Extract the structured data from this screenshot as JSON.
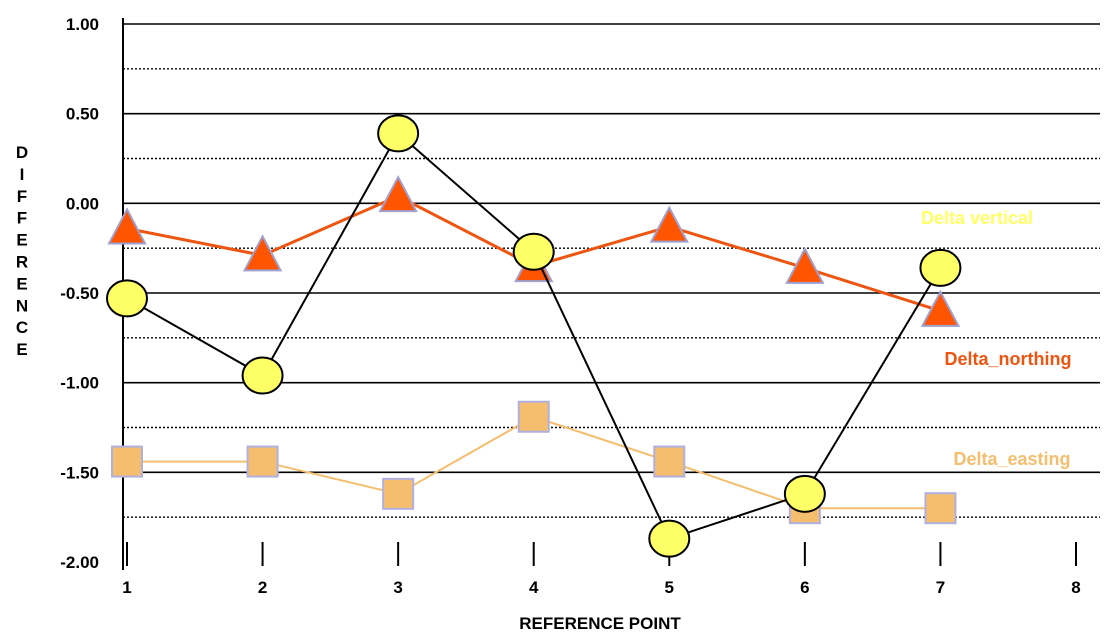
{
  "chart_data": {
    "type": "line",
    "xlabel": "REFERENCE POINT",
    "ylabel": "DIFFERENCE",
    "xlim": [
      1,
      8
    ],
    "ylim": [
      -2.0,
      1.0
    ],
    "x_ticks": [
      "1",
      "2",
      "3",
      "4",
      "5",
      "6",
      "7",
      "8"
    ],
    "y_ticks": [
      "1.00",
      "0.50",
      "0.00",
      "-0.50",
      "-1.00",
      "-1.50",
      "-2.00"
    ],
    "grid": "horizontal solid lines at labeled ticks, dotted lines at midpoints",
    "legend_placement": "right",
    "series": [
      {
        "name": "Delta vertical",
        "marker": "circle",
        "color": "#000000",
        "marker_color": "#ffff66",
        "label_color": "#ffff66",
        "x": [
          1,
          2,
          3,
          4,
          5,
          6,
          7
        ],
        "y": [
          -0.53,
          -0.96,
          0.39,
          -0.27,
          -1.87,
          -1.62,
          -0.36
        ]
      },
      {
        "name": "Delta_northing",
        "marker": "triangle",
        "color": "#ee5511",
        "marker_color": "#ff5500",
        "label_color": "#ee5511",
        "x": [
          1,
          2,
          3,
          4,
          5,
          6,
          7
        ],
        "y": [
          -0.14,
          -0.29,
          0.04,
          -0.35,
          -0.13,
          -0.36,
          -0.6
        ]
      },
      {
        "name": "Delta_easting",
        "marker": "square",
        "color": "#f5be6e",
        "marker_color": "#f5be6e",
        "label_color": "#f5be6e",
        "x": [
          1,
          2,
          3,
          4,
          5,
          6,
          7
        ],
        "y": [
          -1.44,
          -1.44,
          -1.62,
          -1.19,
          -1.44,
          -1.7,
          -1.7
        ]
      }
    ]
  }
}
